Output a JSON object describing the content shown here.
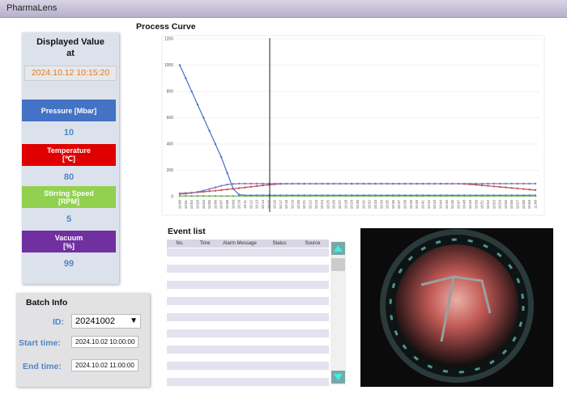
{
  "app": {
    "title": "PharmaLens"
  },
  "display": {
    "title_line1": "Displayed Value",
    "title_line2": "at",
    "timestamp": "2024.10.12 10:15:20",
    "items": [
      {
        "label": [
          "Pressure [Mbar]"
        ],
        "value": 10,
        "color": "#4472c4"
      },
      {
        "label": [
          "Temperature",
          "[℃]"
        ],
        "value": 80,
        "color": "#e00000"
      },
      {
        "label": [
          "Stirring Speed",
          "[RPM]"
        ],
        "value": 5,
        "color": "#92d050"
      },
      {
        "label": [
          "Vacuum",
          "[%]"
        ],
        "value": 99,
        "color": "#7030a0"
      }
    ]
  },
  "batch": {
    "title": "Batch Info",
    "id_label": "ID:",
    "id": "20241002",
    "start_label": "Start time:",
    "start": "2024.10.02 10:00:00",
    "end_label": "End time:",
    "end": "2024.10.02 11:00:00"
  },
  "chart_data": {
    "type": "line",
    "title": "Process Curve",
    "categories": [
      "10:00",
      "10:01",
      "10:02",
      "10:03",
      "10:04",
      "10:05",
      "10:06",
      "10:07",
      "10:08",
      "10:09",
      "10:10",
      "10:11",
      "10:12",
      "10:13",
      "10:14",
      "10:15",
      "10:16",
      "10:17",
      "10:18",
      "10:19",
      "10:20",
      "10:21",
      "10:22",
      "10:23",
      "10:24",
      "10:25",
      "10:26",
      "10:27",
      "10:28",
      "10:29",
      "10:30",
      "10:31",
      "10:32",
      "10:33",
      "10:34",
      "10:35",
      "10:36",
      "10:37",
      "10:38",
      "10:39",
      "10:40",
      "10:41",
      "10:42",
      "10:43",
      "10:44",
      "10:45",
      "10:46",
      "10:47",
      "10:48",
      "10:49",
      "10:50",
      "10:51",
      "10:52",
      "10:53",
      "10:54",
      "10:55",
      "10:56",
      "10:57",
      "10:58",
      "10:59",
      "11:00"
    ],
    "series": [
      {
        "color": "#4472c4",
        "values": [
          1000,
          900,
          800,
          700,
          600,
          500,
          400,
          300,
          180,
          60,
          15,
          10,
          10,
          10,
          10,
          10,
          10,
          10,
          10,
          10,
          10,
          10,
          10,
          10,
          10,
          10,
          10,
          10,
          10,
          10,
          10,
          10,
          10,
          10,
          10,
          10,
          10,
          10,
          10,
          10,
          10,
          10,
          10,
          10,
          10,
          10,
          10,
          10,
          10,
          10,
          10,
          10,
          10,
          10,
          10,
          10,
          10,
          10,
          10,
          10,
          10
        ]
      },
      {
        "color": "#c0504d",
        "values": [
          25,
          27,
          30,
          33,
          37,
          41,
          45,
          50,
          55,
          60,
          65,
          70,
          75,
          80,
          85,
          90,
          94,
          97,
          98,
          98,
          98,
          98,
          98,
          98,
          98,
          98,
          98,
          98,
          98,
          98,
          98,
          98,
          98,
          98,
          98,
          98,
          98,
          98,
          98,
          98,
          98,
          98,
          98,
          98,
          98,
          98,
          98,
          98,
          96,
          93,
          90,
          86,
          82,
          78,
          74,
          70,
          66,
          62,
          58,
          54,
          50
        ]
      },
      {
        "color": "#6ab04c",
        "values": [
          5,
          5,
          5,
          5,
          5,
          5,
          5,
          5,
          5,
          5,
          5,
          5,
          5,
          5,
          5,
          5,
          5,
          5,
          5,
          5,
          5,
          5,
          5,
          5,
          5,
          5,
          5,
          5,
          5,
          5,
          5,
          5,
          5,
          5,
          5,
          5,
          5,
          5,
          5,
          5,
          5,
          5,
          5,
          5,
          5,
          5,
          5,
          5,
          5,
          5,
          5,
          5,
          5,
          5,
          5,
          5,
          5,
          5,
          5,
          5,
          5
        ]
      },
      {
        "color": "#7f6fc0",
        "values": [
          20,
          22,
          28,
          36,
          46,
          58,
          70,
          82,
          92,
          97,
          99,
          99,
          99,
          99,
          99,
          99,
          99,
          99,
          99,
          99,
          99,
          99,
          99,
          99,
          99,
          99,
          99,
          99,
          99,
          99,
          99,
          99,
          99,
          99,
          99,
          99,
          99,
          99,
          99,
          99,
          99,
          99,
          99,
          99,
          99,
          99,
          99,
          99,
          99,
          99,
          99,
          99,
          99,
          99,
          99,
          99,
          99,
          99,
          99,
          99,
          99
        ]
      }
    ],
    "ylim": [
      0,
      1200
    ],
    "yticks": [
      0,
      200,
      400,
      600,
      800,
      1000,
      1200
    ],
    "grid": true
  },
  "event_list": {
    "title": "Event list",
    "columns": [
      "No.",
      "Time",
      "Alarm Message",
      "Status",
      "Source"
    ]
  }
}
